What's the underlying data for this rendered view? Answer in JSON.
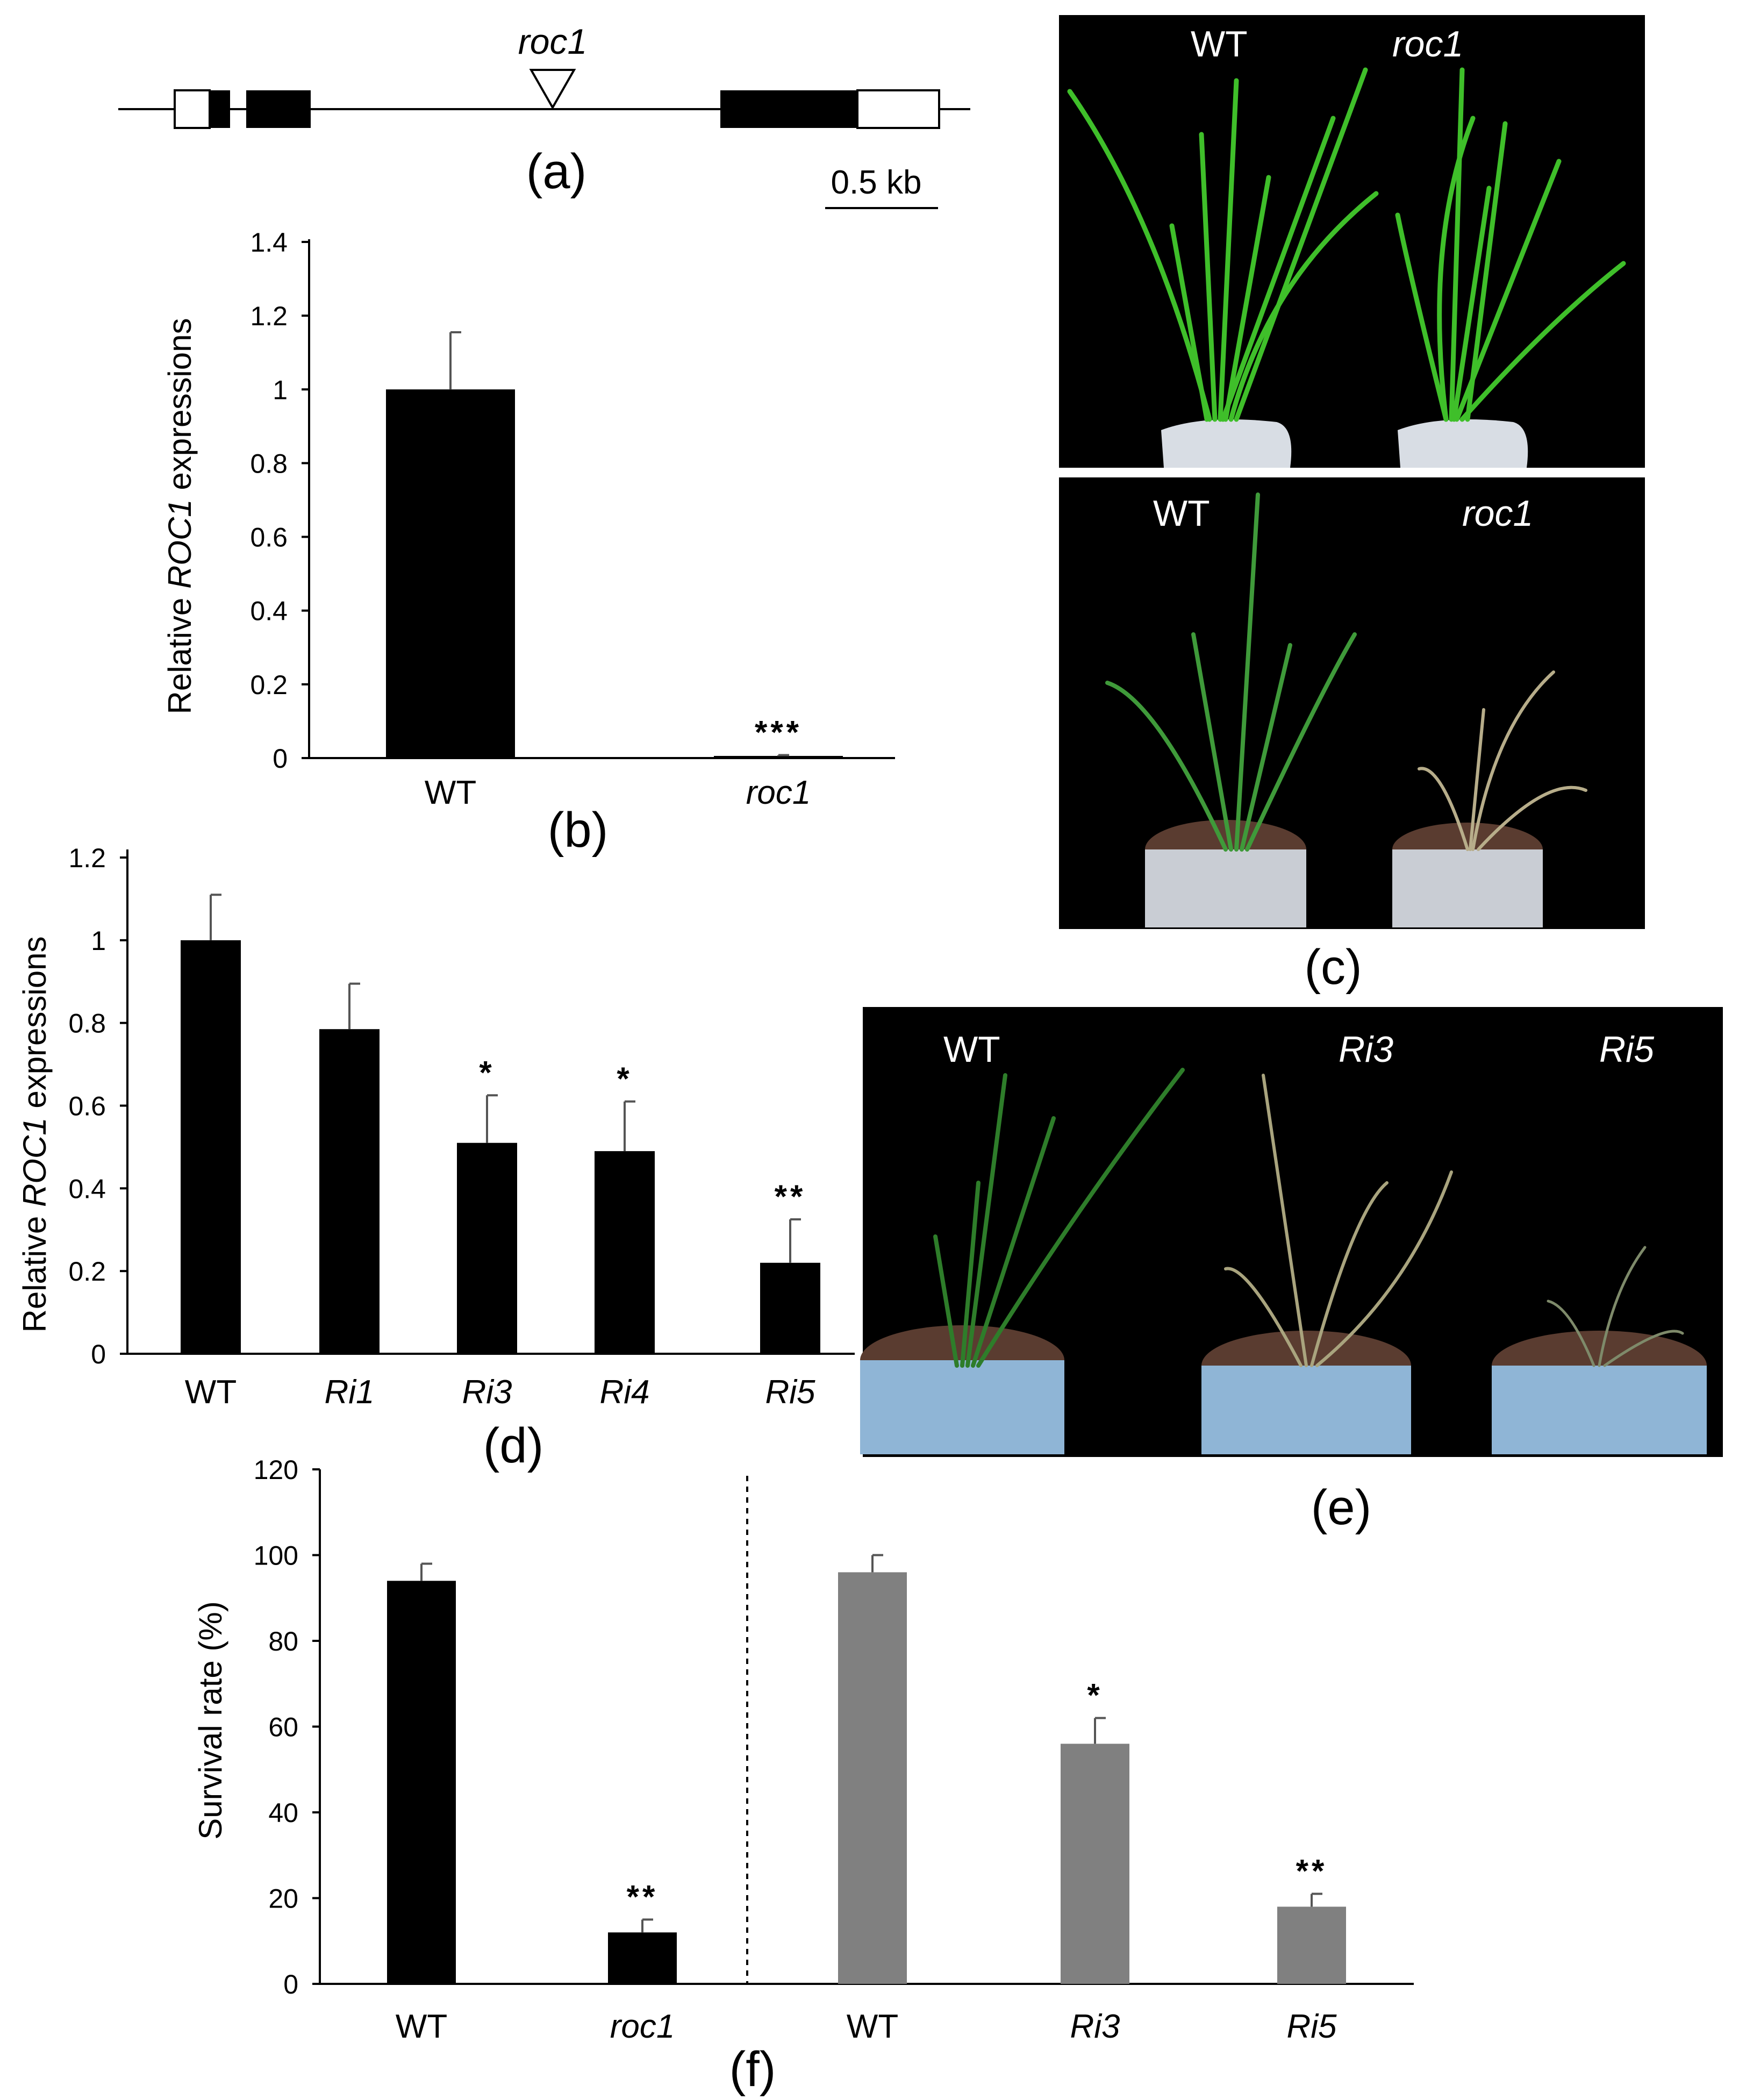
{
  "panel_letters": {
    "a": "(a)",
    "b": "(b)",
    "c": "(c)",
    "d": "(d)",
    "e": "(e)",
    "f": "(f)"
  },
  "gene_model": {
    "insertion_label": "roc1",
    "scale_bar_label": "0.5 kb",
    "colors": {
      "exon": "#000000",
      "utr": "#ffffff",
      "line": "#000000"
    }
  },
  "photos": {
    "c_top": {
      "labels": [
        "WT",
        "roc1"
      ],
      "description_colors": {
        "background": "#000000",
        "leaves": "#3fbf2a"
      }
    },
    "c_bottom": {
      "labels": [
        "WT",
        "roc1"
      ]
    },
    "e": {
      "labels": [
        "WT",
        "Ri3",
        "Ri5"
      ]
    }
  },
  "chart_data": [
    {
      "id": "b",
      "type": "bar",
      "ylabel_prefix": "Relative ",
      "ylabel_italic": "ROC1",
      "ylabel_suffix": " expressions",
      "categories": [
        "WT",
        "roc1"
      ],
      "categories_italic": [
        false,
        true
      ],
      "values": [
        1.0,
        0.005
      ],
      "errors": [
        0.155,
        0.003
      ],
      "significance": [
        "",
        "***"
      ],
      "ylim": [
        0,
        1.4
      ],
      "yticks": [
        "0",
        "0.2",
        "0.4",
        "0.6",
        "0.8",
        "1",
        "1.2",
        "1.4"
      ],
      "bar_color": "#000000"
    },
    {
      "id": "d",
      "type": "bar",
      "ylabel_prefix": "Relative ",
      "ylabel_italic": "ROC1",
      "ylabel_suffix": " expressions",
      "categories": [
        "WT",
        "Ri1",
        "Ri3",
        "Ri4",
        "Ri5"
      ],
      "categories_italic": [
        false,
        true,
        true,
        true,
        true
      ],
      "values": [
        1.0,
        0.785,
        0.51,
        0.49,
        0.22
      ],
      "errors": [
        0.11,
        0.11,
        0.115,
        0.12,
        0.105
      ],
      "significance": [
        "",
        "",
        "*",
        "*",
        "**"
      ],
      "ylim": [
        0,
        1.2
      ],
      "yticks": [
        "0",
        "0.2",
        "0.4",
        "0.6",
        "0.8",
        "1",
        "1.2"
      ],
      "bar_color": "#000000"
    },
    {
      "id": "f",
      "type": "bar",
      "ylabel": "Survival rate (%)",
      "categories": [
        "WT",
        "roc1",
        "WT",
        "Ri3",
        "Ri5"
      ],
      "categories_italic": [
        false,
        true,
        false,
        true,
        true
      ],
      "values": [
        94,
        12,
        96,
        56,
        18
      ],
      "errors": [
        4,
        3,
        4,
        6,
        3
      ],
      "significance": [
        "",
        "**",
        "",
        "*",
        "**"
      ],
      "bar_colors": [
        "#000000",
        "#000000",
        "#808080",
        "#808080",
        "#808080"
      ],
      "ylim": [
        0,
        120
      ],
      "yticks": [
        "0",
        "20",
        "40",
        "60",
        "80",
        "100",
        "120"
      ],
      "divider": "dashed line between roc1 and WT"
    }
  ]
}
